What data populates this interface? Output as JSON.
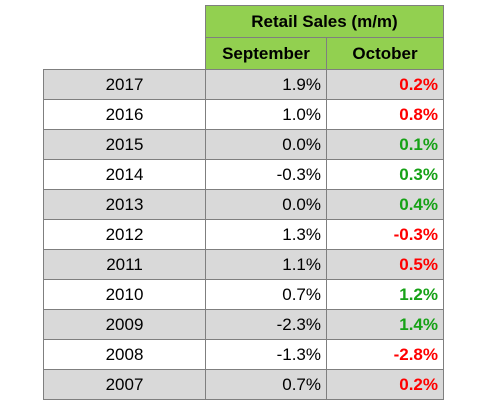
{
  "chart_data": {
    "type": "table",
    "title": "Retail Sales (m/m)",
    "columns": [
      "September",
      "October"
    ],
    "rows": [
      {
        "year": "2017",
        "september": "1.9%",
        "october": "0.2%",
        "october_color": "#ff0000"
      },
      {
        "year": "2016",
        "september": "1.0%",
        "october": "0.8%",
        "october_color": "#ff0000"
      },
      {
        "year": "2015",
        "september": "0.0%",
        "october": "0.1%",
        "october_color": "#17a217"
      },
      {
        "year": "2014",
        "september": "-0.3%",
        "october": "0.3%",
        "october_color": "#17a217"
      },
      {
        "year": "2013",
        "september": "0.0%",
        "october": "0.4%",
        "october_color": "#17a217"
      },
      {
        "year": "2012",
        "september": "1.3%",
        "october": "-0.3%",
        "october_color": "#ff0000"
      },
      {
        "year": "2011",
        "september": "1.1%",
        "october": "0.5%",
        "october_color": "#ff0000"
      },
      {
        "year": "2010",
        "september": "0.7%",
        "october": "1.2%",
        "october_color": "#17a217"
      },
      {
        "year": "2009",
        "september": "-2.3%",
        "october": "1.4%",
        "october_color": "#17a217"
      },
      {
        "year": "2008",
        "september": "-1.3%",
        "october": "-2.8%",
        "october_color": "#ff0000"
      },
      {
        "year": "2007",
        "september": "0.7%",
        "october": "0.2%",
        "october_color": "#ff0000"
      }
    ]
  }
}
